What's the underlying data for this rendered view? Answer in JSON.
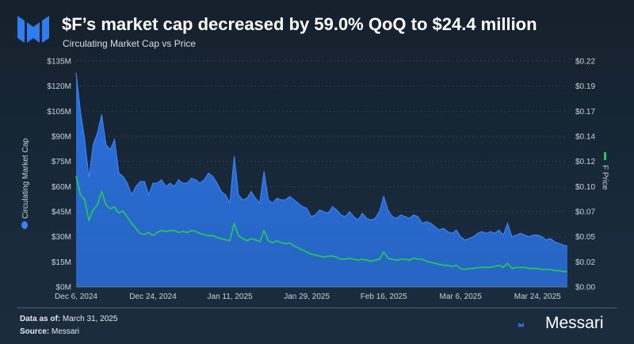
{
  "header": {
    "title": "$F’s market cap decreased by 59.0% QoQ to $24.4 million",
    "subtitle": "Circulating Market Cap vs Price"
  },
  "footer": {
    "data_as_of_label": "Data as of:",
    "data_as_of_value": "March 31, 2025",
    "source_label": "Source:",
    "source_value": "Messari",
    "brand": "Messari"
  },
  "colors": {
    "market_cap_fill": "#2a6fdb",
    "market_cap_line": "#3b82f6",
    "price_line": "#22c55e",
    "grid": "#3a4a5a",
    "axis_text": "#c9d1d9"
  },
  "chart_data": {
    "type": "area",
    "title": "Circulating Market Cap vs Price",
    "x_tick_labels": [
      "Dec 6, 2024",
      "Dec 24, 2024",
      "Jan 11, 2025",
      "Jan 29, 2025",
      "Feb 16, 2025",
      "Mar 6, 2025",
      "Mar 24, 2025"
    ],
    "x_range_days": [
      0,
      115
    ],
    "y_left": {
      "label": "Circulating Market Cap",
      "range": [
        0,
        135
      ],
      "tick_labels": [
        "$0M",
        "$15M",
        "$30M",
        "$45M",
        "$60M",
        "$75M",
        "$90M",
        "$105M",
        "$120M",
        "$135M"
      ]
    },
    "y_right": {
      "label": "F Price",
      "range": [
        0,
        0.22
      ],
      "tick_labels": [
        "$0.00",
        "$0.02",
        "$0.05",
        "$0.07",
        "$0.10",
        "$0.12",
        "$0.14",
        "$0.17",
        "$0.19",
        "$0.22"
      ]
    },
    "series": [
      {
        "name": "Circulating Market Cap",
        "axis": "left",
        "unit": "USD millions",
        "points": [
          [
            0,
            128
          ],
          [
            1,
            105
          ],
          [
            2,
            88
          ],
          [
            3,
            65
          ],
          [
            4,
            85
          ],
          [
            5,
            92
          ],
          [
            6,
            103
          ],
          [
            7,
            85
          ],
          [
            8,
            82
          ],
          [
            9,
            88
          ],
          [
            10,
            68
          ],
          [
            11,
            66
          ],
          [
            12,
            62
          ],
          [
            13,
            55
          ],
          [
            14,
            60
          ],
          [
            15,
            63
          ],
          [
            16,
            63
          ],
          [
            17,
            55
          ],
          [
            18,
            62
          ],
          [
            19,
            62
          ],
          [
            20,
            64
          ],
          [
            21,
            60
          ],
          [
            22,
            62
          ],
          [
            23,
            60
          ],
          [
            24,
            64
          ],
          [
            25,
            62
          ],
          [
            26,
            62
          ],
          [
            27,
            65
          ],
          [
            28,
            64
          ],
          [
            29,
            62
          ],
          [
            30,
            64
          ],
          [
            31,
            68
          ],
          [
            32,
            66
          ],
          [
            33,
            62
          ],
          [
            34,
            57
          ],
          [
            35,
            55
          ],
          [
            36,
            50
          ],
          [
            37,
            78
          ],
          [
            38,
            55
          ],
          [
            39,
            52
          ],
          [
            40,
            53
          ],
          [
            41,
            57
          ],
          [
            42,
            53
          ],
          [
            43,
            50
          ],
          [
            44,
            69
          ],
          [
            45,
            52
          ],
          [
            46,
            50
          ],
          [
            47,
            53
          ],
          [
            48,
            52
          ],
          [
            49,
            52
          ],
          [
            50,
            54
          ],
          [
            51,
            52
          ],
          [
            52,
            50
          ],
          [
            53,
            48
          ],
          [
            54,
            47
          ],
          [
            55,
            42
          ],
          [
            56,
            43
          ],
          [
            57,
            46
          ],
          [
            58,
            45
          ],
          [
            59,
            44
          ],
          [
            60,
            48
          ],
          [
            61,
            46
          ],
          [
            62,
            43
          ],
          [
            63,
            42
          ],
          [
            64,
            45
          ],
          [
            65,
            42
          ],
          [
            66,
            40
          ],
          [
            67,
            44
          ],
          [
            68,
            41
          ],
          [
            69,
            40
          ],
          [
            70,
            41
          ],
          [
            71,
            45
          ],
          [
            72,
            54
          ],
          [
            73,
            46
          ],
          [
            74,
            42
          ],
          [
            75,
            41
          ],
          [
            76,
            43
          ],
          [
            77,
            42
          ],
          [
            78,
            41
          ],
          [
            79,
            43
          ],
          [
            80,
            42
          ],
          [
            81,
            38
          ],
          [
            82,
            39
          ],
          [
            83,
            38
          ],
          [
            84,
            36
          ],
          [
            85,
            34
          ],
          [
            86,
            35
          ],
          [
            87,
            33
          ],
          [
            88,
            32
          ],
          [
            89,
            34
          ],
          [
            90,
            30
          ],
          [
            91,
            28
          ],
          [
            92,
            29
          ],
          [
            93,
            30
          ],
          [
            94,
            32
          ],
          [
            95,
            33
          ],
          [
            96,
            32
          ],
          [
            97,
            33
          ],
          [
            98,
            32
          ],
          [
            99,
            34
          ],
          [
            100,
            31
          ],
          [
            101,
            38
          ],
          [
            102,
            30
          ],
          [
            103,
            31
          ],
          [
            104,
            32
          ],
          [
            105,
            31
          ],
          [
            106,
            30
          ],
          [
            107,
            31
          ],
          [
            108,
            31
          ],
          [
            109,
            30
          ],
          [
            110,
            28
          ],
          [
            111,
            29
          ],
          [
            112,
            27
          ],
          [
            113,
            26
          ],
          [
            114,
            25
          ],
          [
            115,
            24.4
          ]
        ]
      },
      {
        "name": "F Price",
        "axis": "right",
        "unit": "USD",
        "points": [
          [
            0,
            0.108
          ],
          [
            1,
            0.09
          ],
          [
            2,
            0.085
          ],
          [
            3,
            0.065
          ],
          [
            4,
            0.075
          ],
          [
            5,
            0.08
          ],
          [
            6,
            0.093
          ],
          [
            7,
            0.08
          ],
          [
            8,
            0.076
          ],
          [
            9,
            0.078
          ],
          [
            10,
            0.072
          ],
          [
            11,
            0.074
          ],
          [
            12,
            0.068
          ],
          [
            13,
            0.062
          ],
          [
            14,
            0.057
          ],
          [
            15,
            0.052
          ],
          [
            16,
            0.051
          ],
          [
            17,
            0.053
          ],
          [
            18,
            0.05
          ],
          [
            19,
            0.053
          ],
          [
            20,
            0.055
          ],
          [
            21,
            0.054
          ],
          [
            22,
            0.055
          ],
          [
            23,
            0.055
          ],
          [
            24,
            0.053
          ],
          [
            25,
            0.054
          ],
          [
            26,
            0.053
          ],
          [
            27,
            0.055
          ],
          [
            28,
            0.054
          ],
          [
            29,
            0.052
          ],
          [
            30,
            0.051
          ],
          [
            31,
            0.05
          ],
          [
            32,
            0.05
          ],
          [
            33,
            0.048
          ],
          [
            34,
            0.047
          ],
          [
            35,
            0.046
          ],
          [
            36,
            0.045
          ],
          [
            37,
            0.062
          ],
          [
            38,
            0.05
          ],
          [
            39,
            0.047
          ],
          [
            40,
            0.045
          ],
          [
            41,
            0.047
          ],
          [
            42,
            0.046
          ],
          [
            43,
            0.044
          ],
          [
            44,
            0.055
          ],
          [
            45,
            0.045
          ],
          [
            46,
            0.043
          ],
          [
            47,
            0.045
          ],
          [
            48,
            0.043
          ],
          [
            49,
            0.042
          ],
          [
            50,
            0.043
          ],
          [
            51,
            0.04
          ],
          [
            52,
            0.038
          ],
          [
            53,
            0.036
          ],
          [
            54,
            0.034
          ],
          [
            55,
            0.032
          ],
          [
            56,
            0.031
          ],
          [
            57,
            0.03
          ],
          [
            58,
            0.029
          ],
          [
            59,
            0.03
          ],
          [
            60,
            0.03
          ],
          [
            61,
            0.029
          ],
          [
            62,
            0.027
          ],
          [
            63,
            0.027
          ],
          [
            64,
            0.028
          ],
          [
            65,
            0.027
          ],
          [
            66,
            0.026
          ],
          [
            67,
            0.027
          ],
          [
            68,
            0.026
          ],
          [
            69,
            0.025
          ],
          [
            70,
            0.026
          ],
          [
            71,
            0.027
          ],
          [
            72,
            0.034
          ],
          [
            73,
            0.028
          ],
          [
            74,
            0.027
          ],
          [
            75,
            0.026
          ],
          [
            76,
            0.027
          ],
          [
            77,
            0.027
          ],
          [
            78,
            0.026
          ],
          [
            79,
            0.028
          ],
          [
            80,
            0.027
          ],
          [
            81,
            0.027
          ],
          [
            82,
            0.025
          ],
          [
            83,
            0.024
          ],
          [
            84,
            0.023
          ],
          [
            85,
            0.022
          ],
          [
            86,
            0.021
          ],
          [
            87,
            0.021
          ],
          [
            88,
            0.02
          ],
          [
            89,
            0.021
          ],
          [
            90,
            0.018
          ],
          [
            91,
            0.017
          ],
          [
            92,
            0.018
          ],
          [
            93,
            0.018
          ],
          [
            94,
            0.019
          ],
          [
            95,
            0.019
          ],
          [
            96,
            0.019
          ],
          [
            97,
            0.019
          ],
          [
            98,
            0.02
          ],
          [
            99,
            0.021
          ],
          [
            100,
            0.019
          ],
          [
            101,
            0.023
          ],
          [
            102,
            0.018
          ],
          [
            103,
            0.019
          ],
          [
            104,
            0.019
          ],
          [
            105,
            0.019
          ],
          [
            106,
            0.018
          ],
          [
            107,
            0.018
          ],
          [
            108,
            0.018
          ],
          [
            109,
            0.017
          ],
          [
            110,
            0.017
          ],
          [
            111,
            0.017
          ],
          [
            112,
            0.016
          ],
          [
            113,
            0.016
          ],
          [
            114,
            0.015
          ],
          [
            115,
            0.015
          ]
        ]
      }
    ]
  }
}
